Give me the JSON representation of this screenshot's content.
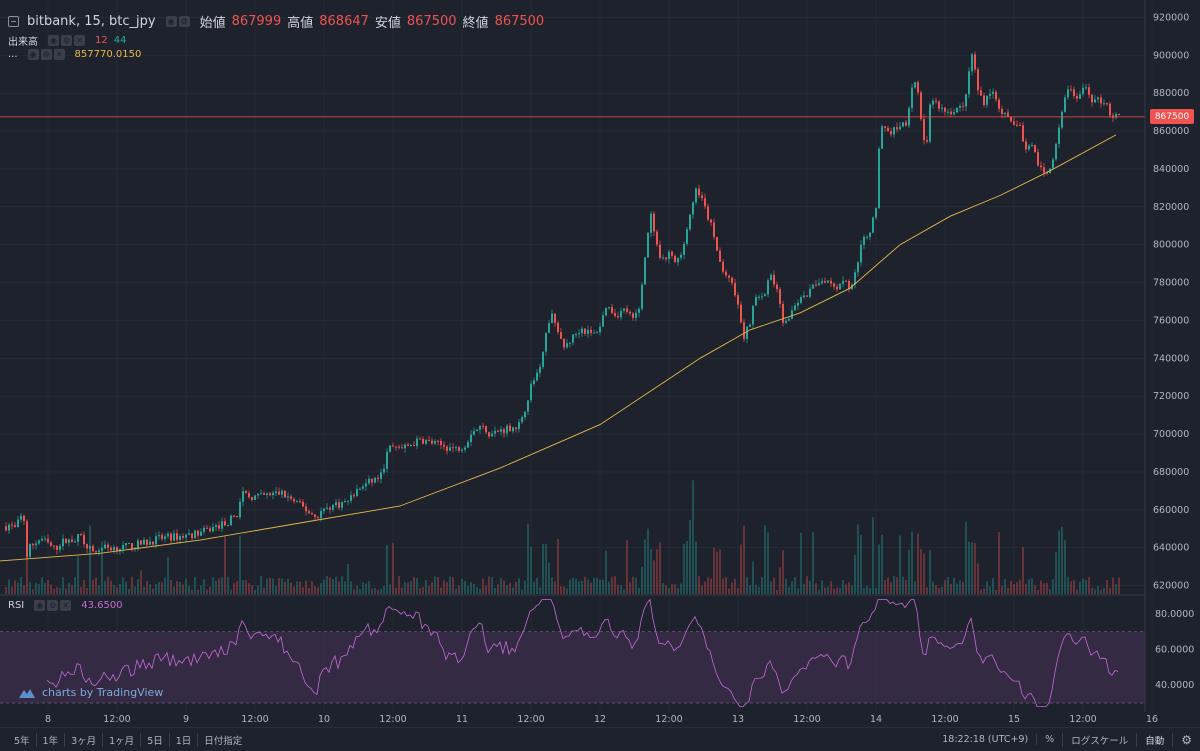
{
  "legend": {
    "symbol": "bitbank, 15, btc_jpy",
    "open_label": "始値",
    "open_value": "867999",
    "high_label": "高値",
    "high_value": "868647",
    "low_label": "安値",
    "low_value": "867500",
    "close_label": "終値",
    "close_value": "867500"
  },
  "volume_legend": {
    "label": "出来高",
    "value1": "12",
    "value2": "44"
  },
  "ma_legend": {
    "label": "...",
    "value": "857770.0150"
  },
  "rsi_legend": {
    "label": "RSI",
    "value": "43.6500"
  },
  "watermark": "charts by TradingView",
  "current_price_tag": "867500",
  "price_axis_ticks": [
    "920000",
    "900000",
    "880000",
    "860000",
    "840000",
    "820000",
    "800000",
    "780000",
    "760000",
    "740000",
    "720000",
    "700000",
    "680000",
    "660000",
    "640000",
    "620000"
  ],
  "rsi_axis_ticks": [
    "80.0000",
    "60.0000",
    "40.0000"
  ],
  "time_axis_ticks": [
    "8",
    "12:00",
    "9",
    "12:00",
    "10",
    "12:00",
    "11",
    "12:00",
    "12",
    "12:00",
    "13",
    "12:00",
    "14",
    "12:00",
    "15",
    "12:00",
    "16"
  ],
  "bottom_bar": {
    "ranges": [
      "5年",
      "1年",
      "3ヶ月",
      "1ヶ月",
      "5日",
      "1日",
      "日付指定"
    ],
    "clock": "18:22:18 (UTC+9)",
    "percent": "%",
    "log_scale": "ログスケール",
    "auto": "自動"
  },
  "colors": {
    "background": "#1e222d",
    "up": "#26a69a",
    "down": "#ef5350",
    "ma": "#e6b84a",
    "rsi": "#c56bd6",
    "rsi_band": "#3a2d4a",
    "grid": "#2a2e39"
  },
  "chart_data": {
    "type": "candlestick",
    "price_range": [
      615000,
      925000
    ],
    "rsi_range": [
      25,
      90
    ],
    "rsi_band": [
      30,
      70
    ],
    "current_price": 867500,
    "price_path": [
      [
        0,
        650000
      ],
      [
        8,
        652000
      ],
      [
        14,
        650000
      ],
      [
        20,
        656000
      ],
      [
        24,
        654000
      ],
      [
        26,
        636000
      ],
      [
        28,
        640000
      ],
      [
        40,
        645000
      ],
      [
        54,
        639000
      ],
      [
        60,
        643000
      ],
      [
        70,
        644000
      ],
      [
        80,
        646000
      ],
      [
        92,
        637000
      ],
      [
        95,
        638000
      ],
      [
        100,
        640000
      ],
      [
        120,
        640000
      ],
      [
        140,
        642000
      ],
      [
        160,
        645000
      ],
      [
        180,
        646000
      ],
      [
        200,
        648000
      ],
      [
        215,
        651000
      ],
      [
        228,
        654000
      ],
      [
        236,
        658000
      ],
      [
        242,
        668000
      ],
      [
        248,
        667000
      ],
      [
        260,
        667000
      ],
      [
        280,
        669000
      ],
      [
        300,
        662000
      ],
      [
        315,
        656000
      ],
      [
        320,
        659000
      ],
      [
        330,
        662000
      ],
      [
        345,
        664000
      ],
      [
        360,
        672000
      ],
      [
        380,
        678000
      ],
      [
        388,
        693000
      ],
      [
        400,
        692000
      ],
      [
        420,
        697000
      ],
      [
        440,
        694000
      ],
      [
        455,
        692000
      ],
      [
        465,
        695000
      ],
      [
        470,
        701000
      ],
      [
        480,
        704000
      ],
      [
        490,
        700000
      ],
      [
        500,
        702000
      ],
      [
        512,
        704000
      ],
      [
        520,
        705000
      ],
      [
        528,
        722000
      ],
      [
        538,
        735000
      ],
      [
        545,
        752000
      ],
      [
        550,
        765000
      ],
      [
        556,
        755000
      ],
      [
        562,
        745000
      ],
      [
        570,
        750000
      ],
      [
        580,
        756000
      ],
      [
        592,
        752000
      ],
      [
        600,
        758000
      ],
      [
        605,
        768000
      ],
      [
        615,
        763000
      ],
      [
        625,
        766000
      ],
      [
        632,
        760000
      ],
      [
        638,
        766000
      ],
      [
        645,
        798000
      ],
      [
        650,
        815000
      ],
      [
        655,
        800000
      ],
      [
        660,
        790000
      ],
      [
        668,
        795000
      ],
      [
        675,
        790000
      ],
      [
        680,
        795000
      ],
      [
        688,
        815000
      ],
      [
        695,
        830000
      ],
      [
        702,
        822000
      ],
      [
        710,
        810000
      ],
      [
        718,
        792000
      ],
      [
        725,
        782000
      ],
      [
        732,
        780000
      ],
      [
        738,
        765000
      ],
      [
        742,
        750000
      ],
      [
        748,
        757000
      ],
      [
        756,
        775000
      ],
      [
        762,
        770000
      ],
      [
        768,
        785000
      ],
      [
        775,
        778000
      ],
      [
        782,
        760000
      ],
      [
        790,
        762000
      ],
      [
        796,
        770000
      ],
      [
        805,
        772000
      ],
      [
        815,
        780000
      ],
      [
        825,
        782000
      ],
      [
        835,
        778000
      ],
      [
        845,
        782000
      ],
      [
        850,
        775000
      ],
      [
        856,
        790000
      ],
      [
        862,
        802000
      ],
      [
        870,
        808000
      ],
      [
        875,
        820000
      ],
      [
        878,
        850000
      ],
      [
        882,
        865000
      ],
      [
        888,
        858000
      ],
      [
        895,
        862000
      ],
      [
        905,
        865000
      ],
      [
        910,
        880000
      ],
      [
        915,
        888000
      ],
      [
        920,
        866000
      ],
      [
        925,
        848000
      ],
      [
        930,
        878000
      ],
      [
        935,
        875000
      ],
      [
        940,
        872000
      ],
      [
        948,
        870000
      ],
      [
        955,
        872000
      ],
      [
        962,
        872000
      ],
      [
        968,
        890000
      ],
      [
        972,
        902000
      ],
      [
        976,
        885000
      ],
      [
        982,
        875000
      ],
      [
        990,
        882000
      ],
      [
        996,
        875000
      ],
      [
        1004,
        868000
      ],
      [
        1012,
        862000
      ],
      [
        1018,
        866000
      ],
      [
        1024,
        848000
      ],
      [
        1030,
        852000
      ],
      [
        1036,
        845000
      ],
      [
        1042,
        838000
      ],
      [
        1048,
        837000
      ],
      [
        1055,
        852000
      ],
      [
        1060,
        866000
      ],
      [
        1066,
        884000
      ],
      [
        1072,
        878000
      ],
      [
        1078,
        878000
      ],
      [
        1085,
        883000
      ],
      [
        1092,
        876000
      ],
      [
        1098,
        876000
      ],
      [
        1105,
        876000
      ],
      [
        1110,
        868000
      ],
      [
        1116,
        867500
      ]
    ],
    "ma_path": [
      [
        0,
        633000
      ],
      [
        100,
        637000
      ],
      [
        200,
        644000
      ],
      [
        300,
        653000
      ],
      [
        400,
        662000
      ],
      [
        500,
        682000
      ],
      [
        600,
        705000
      ],
      [
        700,
        740000
      ],
      [
        750,
        755000
      ],
      [
        800,
        764000
      ],
      [
        850,
        777000
      ],
      [
        900,
        800000
      ],
      [
        950,
        815000
      ],
      [
        1000,
        826000
      ],
      [
        1050,
        839000
      ],
      [
        1116,
        858000
      ]
    ]
  }
}
